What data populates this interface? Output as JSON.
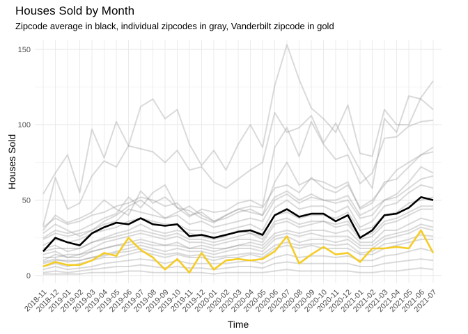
{
  "chart_data": {
    "type": "line",
    "title": "Houses Sold by Month",
    "subtitle": "Zipcode average in black, individual zipcodes in gray, Vanderbilt zipcode in gold",
    "xlabel": "Time",
    "ylabel": "Houses Sold",
    "ylim": [
      0,
      150
    ],
    "yticks": [
      0,
      50,
      100,
      150
    ],
    "grid": true,
    "legend": "none",
    "x": [
      "2018-11",
      "2018-12",
      "2019-01",
      "2019-02",
      "2019-03",
      "2019-04",
      "2019-05",
      "2019-06",
      "2019-07",
      "2019-08",
      "2019-09",
      "2019-10",
      "2019-11",
      "2019-12",
      "2020-01",
      "2020-02",
      "2020-03",
      "2020-04",
      "2020-05",
      "2020-06",
      "2020-07",
      "2020-08",
      "2020-09",
      "2020-10",
      "2020-11",
      "2020-12",
      "2021-01",
      "2021-02",
      "2021-03",
      "2021-04",
      "2021-05",
      "2021-06",
      "2021-07"
    ],
    "colors": {
      "average": "#000000",
      "individual": "#a6a6a6",
      "vanderbilt": "#f5cc26"
    },
    "series_average": [
      16,
      25,
      22,
      20,
      28,
      32,
      35,
      34,
      38,
      34,
      33,
      34,
      26,
      27,
      25,
      27,
      29,
      30,
      27,
      40,
      44,
      39,
      41,
      41,
      36,
      40,
      25,
      30,
      40,
      41,
      45,
      52,
      50
    ],
    "series_vanderbilt": [
      6,
      9,
      7,
      7,
      10,
      15,
      13,
      25,
      17,
      12,
      4,
      11,
      2,
      15,
      4,
      10,
      11,
      10,
      11,
      16,
      26,
      8,
      14,
      19,
      14,
      15,
      9,
      18,
      18,
      19,
      18,
      30,
      15
    ],
    "series_individual": [
      [
        54,
        68,
        80,
        55,
        97,
        78,
        102,
        86,
        112,
        117,
        104,
        110,
        87,
        73,
        83,
        70,
        87,
        100,
        85,
        126,
        153,
        130,
        111,
        104,
        95,
        113,
        81,
        79,
        110,
        100,
        100,
        118,
        129
      ],
      [
        33,
        65,
        44,
        48,
        66,
        76,
        72,
        86,
        84,
        82,
        75,
        83,
        70,
        72,
        62,
        58,
        64,
        70,
        75,
        108,
        95,
        98,
        106,
        88,
        101,
        85,
        70,
        58,
        104,
        95,
        119,
        117,
        110
      ],
      [
        30,
        40,
        35,
        38,
        42,
        50,
        44,
        40,
        56,
        48,
        52,
        45,
        39,
        44,
        42,
        43,
        48,
        50,
        46,
        85,
        98,
        79,
        102,
        87,
        77,
        80,
        61,
        68,
        91,
        92,
        99,
        102,
        103
      ],
      [
        25,
        30,
        28,
        30,
        34,
        38,
        41,
        52,
        45,
        55,
        60,
        45,
        43,
        38,
        35,
        40,
        44,
        46,
        45,
        58,
        60,
        55,
        65,
        58,
        55,
        60,
        45,
        50,
        60,
        70,
        75,
        80,
        82
      ],
      [
        28,
        34,
        30,
        26,
        30,
        36,
        40,
        46,
        50,
        44,
        38,
        42,
        46,
        40,
        36,
        38,
        42,
        44,
        40,
        52,
        56,
        50,
        54,
        50,
        50,
        53,
        40,
        44,
        50,
        54,
        62,
        72,
        68
      ],
      [
        20,
        24,
        22,
        24,
        28,
        30,
        32,
        36,
        38,
        36,
        34,
        34,
        30,
        30,
        28,
        30,
        32,
        34,
        30,
        45,
        50,
        44,
        46,
        46,
        42,
        46,
        32,
        36,
        46,
        48,
        55,
        60,
        58
      ],
      [
        18,
        20,
        16,
        18,
        22,
        25,
        28,
        30,
        34,
        30,
        28,
        30,
        28,
        26,
        24,
        26,
        30,
        28,
        26,
        40,
        42,
        38,
        40,
        40,
        38,
        42,
        30,
        32,
        40,
        42,
        48,
        50,
        52
      ],
      [
        14,
        16,
        12,
        14,
        18,
        22,
        24,
        26,
        28,
        26,
        24,
        26,
        22,
        22,
        20,
        22,
        24,
        24,
        22,
        34,
        36,
        32,
        34,
        36,
        32,
        34,
        24,
        26,
        34,
        36,
        40,
        44,
        44
      ],
      [
        10,
        14,
        12,
        12,
        16,
        18,
        20,
        22,
        24,
        22,
        20,
        22,
        18,
        20,
        18,
        18,
        20,
        22,
        20,
        28,
        30,
        28,
        30,
        30,
        28,
        30,
        22,
        22,
        30,
        30,
        34,
        38,
        36
      ],
      [
        8,
        10,
        10,
        10,
        12,
        14,
        16,
        18,
        20,
        18,
        16,
        18,
        16,
        16,
        14,
        16,
        18,
        18,
        16,
        24,
        26,
        22,
        24,
        24,
        22,
        24,
        18,
        18,
        24,
        26,
        28,
        32,
        30
      ],
      [
        6,
        8,
        6,
        8,
        10,
        12,
        12,
        14,
        16,
        14,
        12,
        14,
        12,
        12,
        10,
        12,
        12,
        14,
        12,
        18,
        20,
        18,
        20,
        18,
        18,
        18,
        14,
        14,
        18,
        20,
        22,
        24,
        24
      ],
      [
        4,
        6,
        4,
        5,
        6,
        8,
        9,
        10,
        11,
        10,
        8,
        10,
        8,
        8,
        8,
        8,
        9,
        10,
        8,
        12,
        14,
        12,
        13,
        13,
        12,
        13,
        10,
        10,
        13,
        14,
        16,
        18,
        16
      ],
      [
        2,
        3,
        2,
        3,
        4,
        5,
        6,
        6,
        7,
        6,
        5,
        6,
        5,
        5,
        4,
        5,
        6,
        6,
        5,
        8,
        9,
        8,
        8,
        8,
        8,
        8,
        6,
        6,
        8,
        9,
        10,
        11,
        10
      ],
      [
        1,
        1,
        1,
        1,
        2,
        2,
        2,
        3,
        3,
        2,
        2,
        2,
        2,
        2,
        1,
        2,
        2,
        2,
        2,
        3,
        4,
        3,
        3,
        3,
        3,
        3,
        2,
        2,
        3,
        3,
        4,
        5,
        4
      ],
      [
        32,
        38,
        34,
        36,
        40,
        42,
        46,
        48,
        52,
        50,
        46,
        48,
        40,
        42,
        36,
        40,
        44,
        42,
        40,
        62,
        75,
        60,
        64,
        62,
        58,
        62,
        44,
        48,
        62,
        64,
        72,
        80,
        85
      ],
      [
        24,
        28,
        26,
        28,
        30,
        34,
        36,
        44,
        42,
        40,
        38,
        40,
        34,
        36,
        32,
        34,
        36,
        38,
        36,
        50,
        54,
        48,
        52,
        50,
        48,
        50,
        38,
        40,
        50,
        52,
        58,
        64,
        66
      ],
      [
        16,
        18,
        18,
        18,
        22,
        24,
        26,
        28,
        30,
        28,
        26,
        28,
        24,
        24,
        22,
        24,
        26,
        28,
        24,
        36,
        38,
        34,
        36,
        36,
        34,
        36,
        26,
        28,
        36,
        38,
        42,
        46,
        46
      ],
      [
        12,
        12,
        14,
        14,
        16,
        18,
        20,
        20,
        22,
        20,
        20,
        20,
        18,
        18,
        16,
        18,
        20,
        20,
        18,
        26,
        28,
        26,
        28,
        26,
        26,
        26,
        20,
        20,
        26,
        28,
        30,
        34,
        32
      ],
      [
        9,
        11,
        9,
        10,
        12,
        13,
        15,
        16,
        18,
        16,
        14,
        15,
        13,
        14,
        12,
        13,
        14,
        15,
        14,
        20,
        22,
        20,
        21,
        21,
        20,
        21,
        15,
        16,
        21,
        22,
        24,
        27,
        26
      ]
    ]
  }
}
